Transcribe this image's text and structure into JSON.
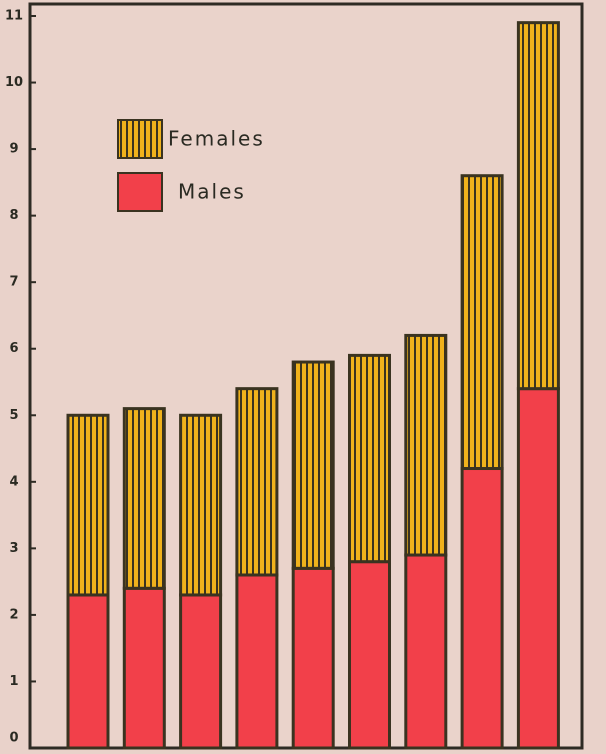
{
  "chart_data": {
    "type": "stacked_bar",
    "categories": [
      null,
      null,
      null,
      null,
      null,
      null,
      null,
      null,
      null
    ],
    "series": [
      {
        "name": "Males",
        "color": "#f2404a",
        "values": [
          2.3,
          2.4,
          2.3,
          2.6,
          2.7,
          2.8,
          2.9,
          4.2,
          5.4
        ]
      },
      {
        "name": "Females",
        "color": "#f0b21c",
        "values": [
          2.7,
          2.7,
          2.7,
          2.8,
          3.1,
          3.1,
          3.3,
          4.4,
          5.5
        ]
      }
    ],
    "ylim": [
      0,
      11
    ],
    "yticks": [
      0,
      1,
      2,
      3,
      4,
      5,
      6,
      7,
      8,
      9,
      10,
      11
    ],
    "legend": "upper left"
  }
}
